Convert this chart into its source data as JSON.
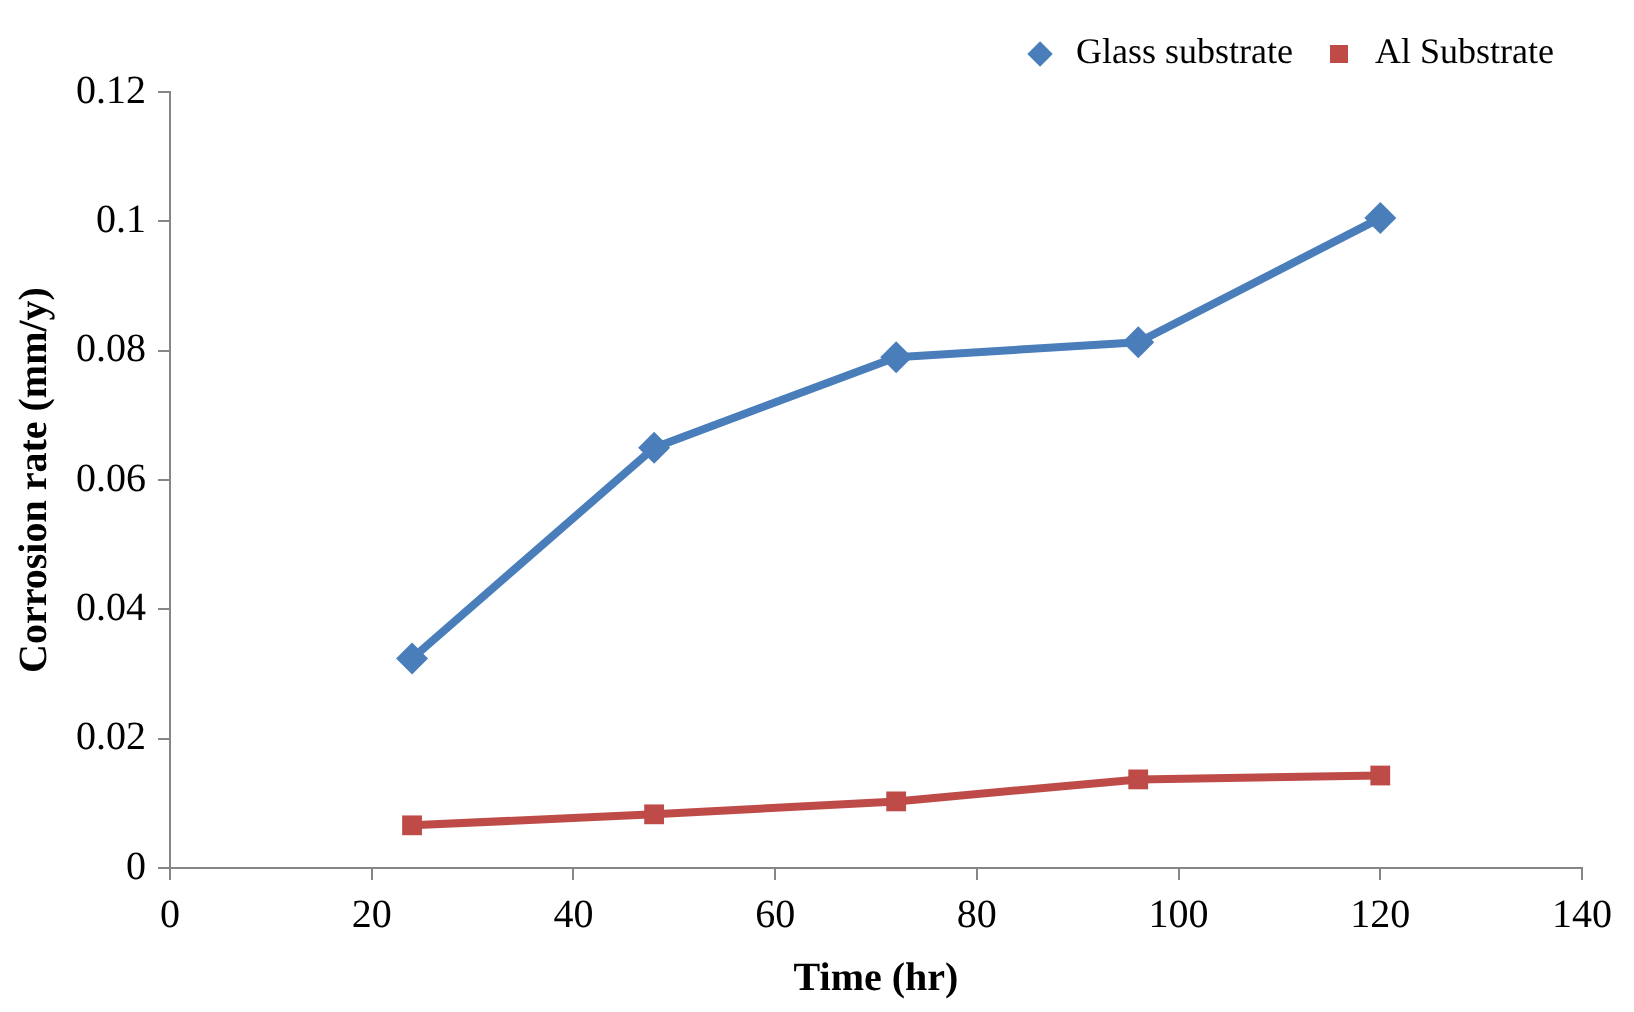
{
  "chart_data": {
    "type": "line",
    "xlabel": "Time (hr)",
    "ylabel": "Corrosion rate (mm/y)",
    "x": [
      24,
      48,
      72,
      96,
      120
    ],
    "series": [
      {
        "name": "Glass substrate",
        "color": "#4a7ebb",
        "marker": "diamond",
        "values": [
          0.0324,
          0.065,
          0.079,
          0.0813,
          0.1005
        ]
      },
      {
        "name": "Al Substrate",
        "color": "#be4b48",
        "marker": "square",
        "values": [
          0.0066,
          0.0083,
          0.0103,
          0.0137,
          0.0143
        ]
      }
    ],
    "xlim": [
      0,
      140
    ],
    "xticks": [
      0,
      20,
      40,
      60,
      80,
      100,
      120,
      140
    ],
    "ylim": [
      0,
      0.12
    ],
    "yticks": [
      0,
      0.02,
      0.04,
      0.06,
      0.08,
      0.1,
      0.12
    ],
    "grid": false,
    "legend": "top right",
    "line_style": "solid"
  }
}
